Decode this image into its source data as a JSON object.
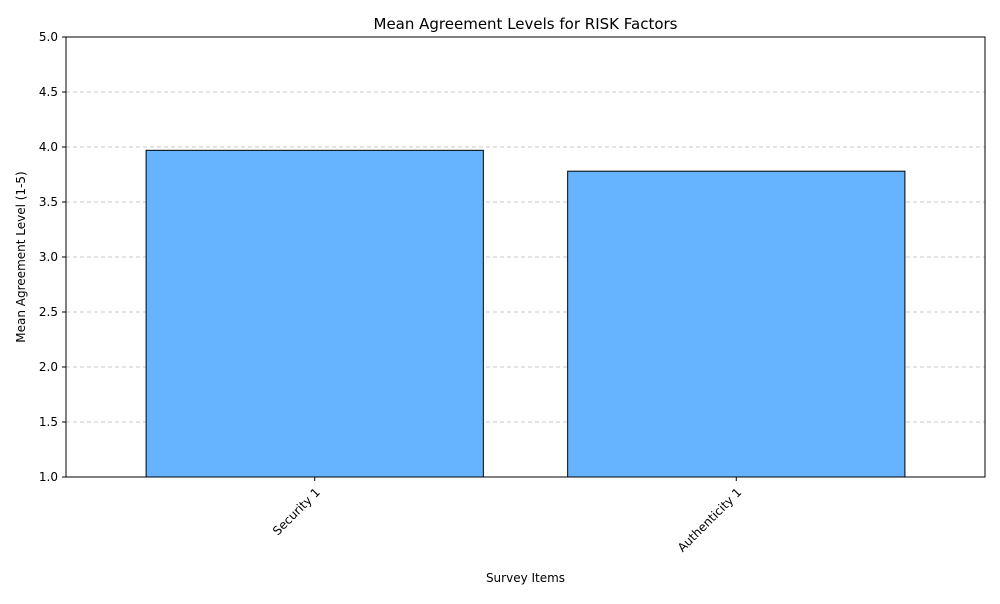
{
  "chart_data": {
    "type": "bar",
    "title": "Mean Agreement Levels for RISK Factors",
    "xlabel": "Survey Items",
    "ylabel": "Mean Agreement Level (1-5)",
    "categories": [
      "Security 1",
      "Authenticity 1"
    ],
    "values": [
      3.97,
      3.78
    ],
    "ylim": [
      1.0,
      5.0
    ],
    "yticks": [
      "1.0",
      "1.5",
      "2.0",
      "2.5",
      "3.0",
      "3.5",
      "4.0",
      "4.5",
      "5.0"
    ],
    "grid": "y-dashed",
    "colors": {
      "bar_fill": "#66b3ff",
      "bar_edge": "#000000",
      "grid": "#c8c8c8"
    }
  }
}
